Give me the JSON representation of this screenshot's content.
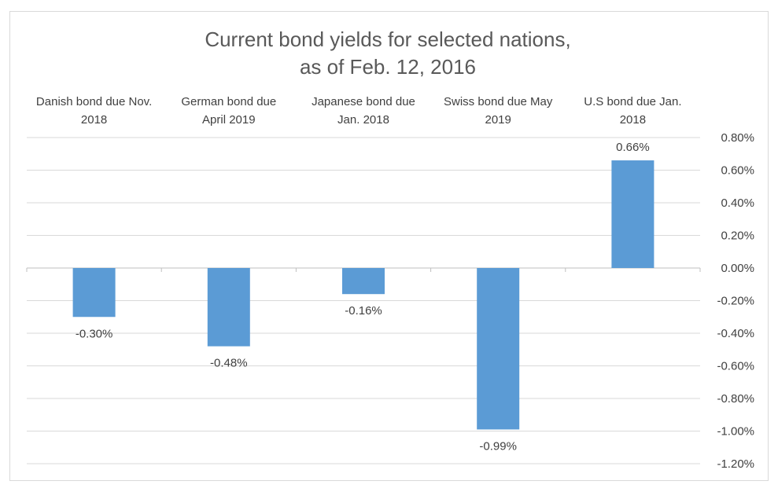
{
  "chart_data": {
    "type": "bar",
    "title": "Current bond yields for selected nations, as of Feb. 12, 2016",
    "title_lines": [
      "Current bond yields for selected nations,",
      "as of Feb. 12, 2016"
    ],
    "categories": [
      "Danish bond due Nov. 2018",
      "German bond due April 2019",
      "Japanese bond due Jan. 2018",
      "Swiss bond due May 2019",
      "U.S bond due Jan. 2018"
    ],
    "category_lines": [
      [
        "Danish bond due Nov.",
        "2018"
      ],
      [
        "German bond due",
        "April 2019"
      ],
      [
        "Japanese bond due",
        "Jan. 2018"
      ],
      [
        "Swiss bond due May",
        "2019"
      ],
      [
        "U.S bond due Jan.",
        "2018"
      ]
    ],
    "values": [
      -0.3,
      -0.48,
      -0.16,
      -0.99,
      0.66
    ],
    "data_labels": [
      "-0.30%",
      "-0.48%",
      "-0.16%",
      "-0.99%",
      "0.66%"
    ],
    "ylim": [
      -1.2,
      0.8
    ],
    "yticks": [
      0.8,
      0.6,
      0.4,
      0.2,
      0.0,
      -0.2,
      -0.4,
      -0.6,
      -0.8,
      -1.0,
      -1.2
    ],
    "ytick_labels": [
      "0.80%",
      "0.60%",
      "0.40%",
      "0.20%",
      "0.00%",
      "-0.20%",
      "-0.40%",
      "-0.60%",
      "-0.80%",
      "-1.00%",
      "-1.20%"
    ],
    "y_axis_side": "right",
    "category_labels_position": "top",
    "grid": true,
    "legend": "none",
    "bar_color": "#5b9bd5",
    "grid_color": "#d9d9d9"
  }
}
